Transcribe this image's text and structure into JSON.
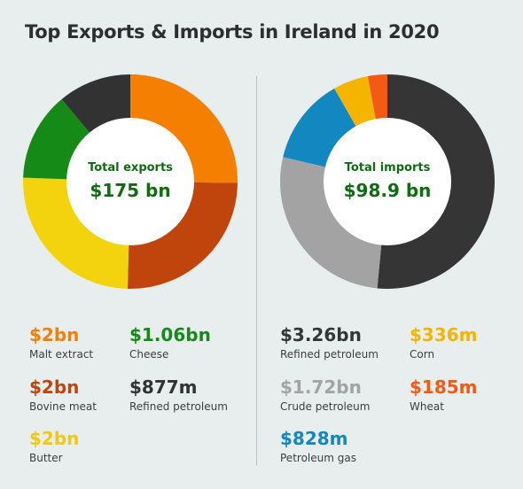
{
  "title": "Top Exports & Imports in Ireland in 2020",
  "chart_data": [
    {
      "type": "pie",
      "center_label": "Total exports",
      "center_value": "$175 bn",
      "slices": [
        {
          "label": "Malt extract",
          "value": 2.0,
          "display": "$2bn",
          "color": "#f57f00"
        },
        {
          "label": "Bovine meat",
          "value": 2.0,
          "display": "$2bn",
          "color": "#c0450c"
        },
        {
          "label": "Butter",
          "value": 2.0,
          "display": "$2bn",
          "color": "#f2d30d"
        },
        {
          "label": "Cheese",
          "value": 1.06,
          "display": "$1.06bn",
          "color": "#168a17"
        },
        {
          "label": "Refined petroleum",
          "value": 0.877,
          "display": "$877m",
          "color": "#323232"
        }
      ]
    },
    {
      "type": "pie",
      "center_label": "Total imports",
      "center_value": "$98.9 bn",
      "slices": [
        {
          "label": "Refined petroleum",
          "value": 3.26,
          "display": "$3.26bn",
          "color": "#353535"
        },
        {
          "label": "Crude petroleum",
          "value": 1.72,
          "display": "$1.72bn",
          "color": "#a3a3a3"
        },
        {
          "label": "Petroleum gas",
          "value": 0.828,
          "display": "$828m",
          "color": "#1388c0"
        },
        {
          "label": "Corn",
          "value": 0.336,
          "display": "$336m",
          "color": "#f5b400"
        },
        {
          "label": "Wheat",
          "value": 0.185,
          "display": "$185m",
          "color": "#f45a14"
        }
      ]
    }
  ]
}
